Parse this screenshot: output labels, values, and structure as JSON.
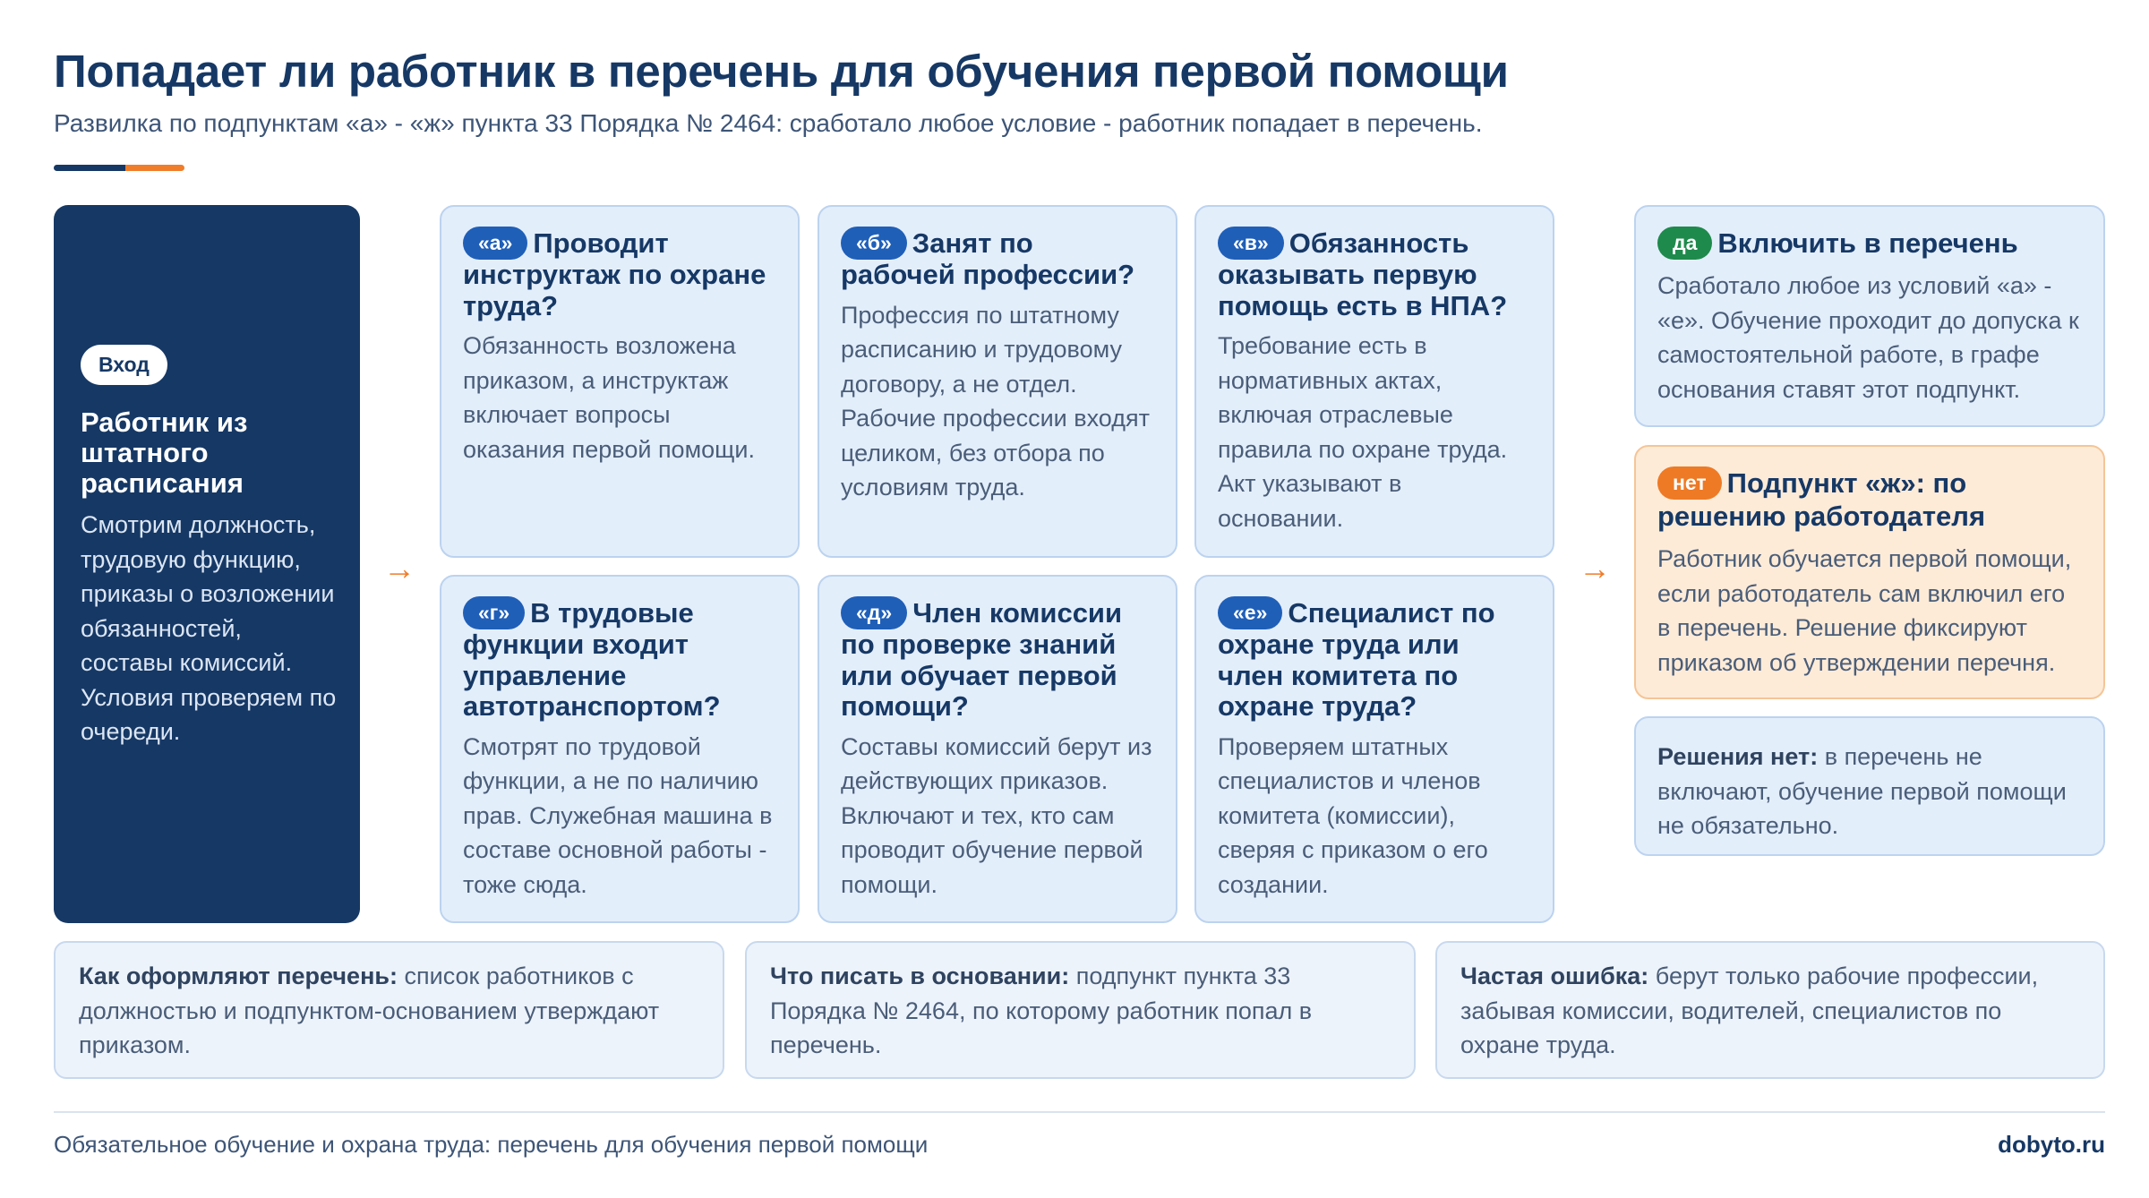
{
  "header": {
    "title": "Попадает ли работник в перечень для обучения первой помощи",
    "subtitle": "Развилка по подпунктам «а» - «ж» пункта 33 Порядка № 2464: сработало любое условие - работник попадает в перечень."
  },
  "colors": {
    "navy": "#163865",
    "orange": "#f07d2a",
    "blue_card": "#e3eefb",
    "green": "#1e8a4c",
    "peach": "#fdebd8"
  },
  "entry": {
    "badge": "Вход",
    "title": "Работник из штатного расписания",
    "text": "Смотрим должность, трудовую функцию, приказы о возложении обязанностей, составы комиссий. Условия проверяем по очереди."
  },
  "arrows": {
    "symbol": "→"
  },
  "conditions": [
    {
      "letter": "«а»",
      "title": "Проводит инструктаж по охране труда?",
      "text": "Обязанность возложена приказом, а инструктаж включает вопросы оказания первой помощи."
    },
    {
      "letter": "«б»",
      "title": "Занят по рабочей профессии?",
      "text": "Профессия по штатному расписанию и трудовому договору, а не отдел. Рабочие профессии входят целиком, без отбора по условиям труда."
    },
    {
      "letter": "«в»",
      "title": "Обязанность оказывать первую помощь есть в НПА?",
      "text": "Требование есть в нормативных актах, включая отраслевые правила по охране труда. Акт указывают в основании."
    },
    {
      "letter": "«г»",
      "title": "В трудовые функции входит управление автотранспортом?",
      "text": "Смотрят по трудовой функции, а не по наличию прав. Служебная машина в составе основной работы - тоже сюда."
    },
    {
      "letter": "«д»",
      "title": "Член комиссии по проверке знаний или обучает первой помощи?",
      "text": "Составы комиссий берут из действующих приказов. Включают и тех, кто сам проводит обучение первой помощи."
    },
    {
      "letter": "«е»",
      "title": "Специалист по охране труда или член комитета по охране труда?",
      "text": "Проверяем штатных специалистов и членов комитета (комиссии), сверяя с приказом о его создании."
    }
  ],
  "results": {
    "yes": {
      "pill": "да",
      "title": "Включить в перечень",
      "text": "Сработало любое из условий «а» - «е». Обучение проходит до допуска к самостоятельной работе, в графе основания ставят этот подпункт."
    },
    "no": {
      "pill": "нет",
      "title": "Подпункт «ж»: по решению работодателя",
      "text": "Работник обучается первой помощи, если работодатель сам включил его в перечень. Решение фиксируют приказом об утверждении перечня."
    },
    "none": {
      "lead": "Решения нет:",
      "text": " в перечень не включают, обучение первой помощи не обязательно."
    }
  },
  "notes": [
    {
      "lead": "Как оформляют перечень:",
      "text": " список работников с должностью и подпунктом-основанием утверждают приказом."
    },
    {
      "lead": "Что писать в основании:",
      "text": " подпункт пункта 33 Порядка № 2464, по которому работник попал в перечень."
    },
    {
      "lead": "Частая ошибка:",
      "text": " берут только рабочие профессии, забывая комиссии, водителей, специалистов по охране труда."
    }
  ],
  "footer": {
    "left": "Обязательное обучение и охрана труда: перечень для обучения первой помощи",
    "right": "dobyto.ru"
  }
}
